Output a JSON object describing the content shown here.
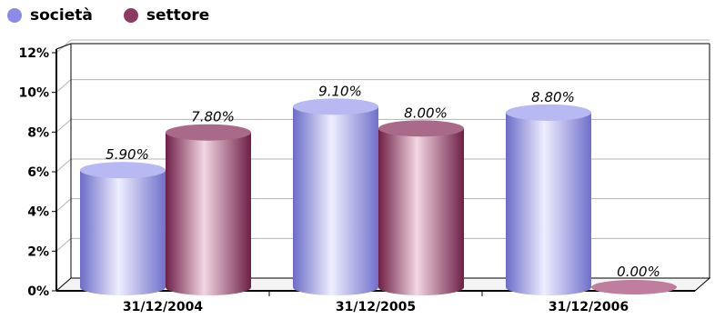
{
  "chart_data": {
    "type": "bar",
    "categories": [
      "31/12/2004",
      "31/12/2005",
      "31/12/2006"
    ],
    "series": [
      {
        "name": "società",
        "values": [
          5.9,
          9.1,
          8.8
        ],
        "labels": [
          "5.90%",
          "9.10%",
          "8.80%"
        ],
        "color": "#9a9ae8"
      },
      {
        "name": "settore",
        "values": [
          7.8,
          8.0,
          0.0
        ],
        "labels": [
          "7.80%",
          "8.00%",
          "0.00%"
        ],
        "color": "#8b3a62"
      }
    ],
    "y_ticks": [
      "0%",
      "2%",
      "4%",
      "6%",
      "8%",
      "10%",
      "12%"
    ],
    "ylim": [
      0,
      12
    ],
    "grid": true,
    "legend_position": "top-left",
    "style": "3d-cylinder"
  }
}
